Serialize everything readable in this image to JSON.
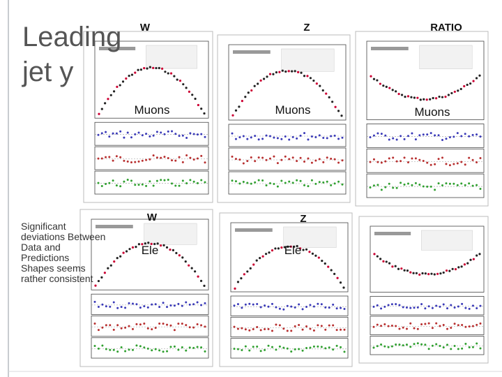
{
  "title": "Leading jet y",
  "panels": [
    {
      "process": "W",
      "channel": "Muons"
    },
    {
      "process": "Z",
      "channel": "Muons"
    },
    {
      "process": "RATIO",
      "channel": "Muons"
    },
    {
      "process": "W",
      "channel": "Ele"
    },
    {
      "process": "Z",
      "channel": "Ele"
    }
  ],
  "notes": [
    "Significant deviations Between Data and Predictions",
    "Shapes seems rather consistent"
  ]
}
